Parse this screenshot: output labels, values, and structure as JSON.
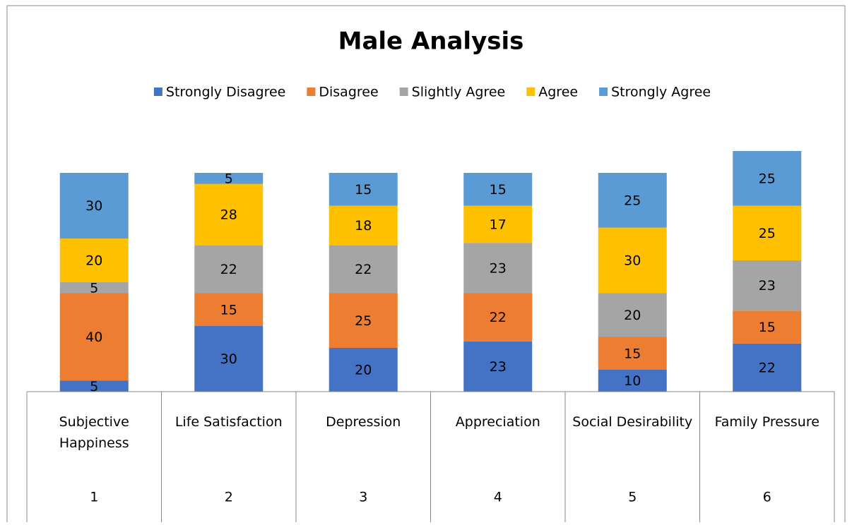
{
  "chart_data": {
    "type": "stacked_bar",
    "title": "Male Analysis",
    "categories": [
      "Subjective Happiness",
      "Life Satisfaction",
      "Depression",
      "Appreciation",
      "Social Desirability",
      "Family Pressure"
    ],
    "category_numbers": [
      "1",
      "2",
      "3",
      "4",
      "5",
      "6"
    ],
    "series": [
      {
        "name": "Strongly Disagree",
        "color": "#4472c4",
        "values": [
          5,
          30,
          20,
          23,
          10,
          22
        ]
      },
      {
        "name": "Disagree",
        "color": "#ed7d31",
        "values": [
          40,
          15,
          25,
          22,
          15,
          15
        ]
      },
      {
        "name": "Slightly Agree",
        "color": "#a5a5a5",
        "values": [
          5,
          22,
          22,
          23,
          20,
          23
        ]
      },
      {
        "name": "Agree",
        "color": "#ffc000",
        "values": [
          20,
          28,
          18,
          17,
          30,
          25
        ]
      },
      {
        "name": "Strongly Agree",
        "color": "#5b9bd5",
        "values": [
          30,
          5,
          15,
          15,
          25,
          25
        ]
      }
    ],
    "ylim": [
      0,
      120
    ],
    "legend": "top"
  }
}
